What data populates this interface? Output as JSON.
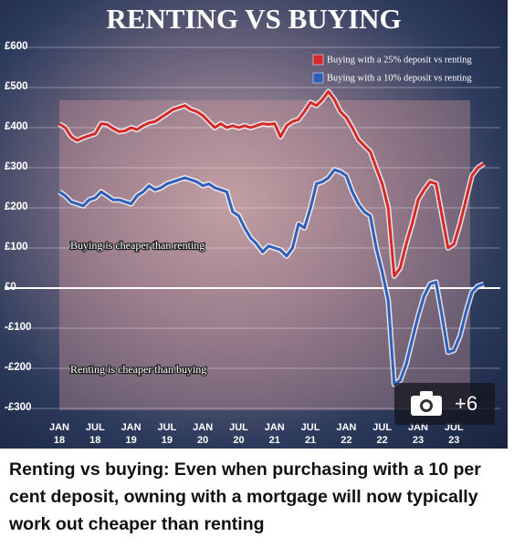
{
  "chart_data": {
    "type": "line",
    "title": "RENTING VS BUYING",
    "x": [
      "2018-01",
      "2018-02",
      "2018-03",
      "2018-04",
      "2018-05",
      "2018-06",
      "2018-07",
      "2018-08",
      "2018-09",
      "2018-10",
      "2018-11",
      "2018-12",
      "2019-01",
      "2019-02",
      "2019-03",
      "2019-04",
      "2019-05",
      "2019-06",
      "2019-07",
      "2019-08",
      "2019-09",
      "2019-10",
      "2019-11",
      "2019-12",
      "2020-01",
      "2020-02",
      "2020-03",
      "2020-04",
      "2020-05",
      "2020-06",
      "2020-07",
      "2020-08",
      "2020-09",
      "2020-10",
      "2020-11",
      "2020-12",
      "2021-01",
      "2021-02",
      "2021-03",
      "2021-04",
      "2021-05",
      "2021-06",
      "2021-07",
      "2021-08",
      "2021-09",
      "2021-10",
      "2021-11",
      "2021-12",
      "2022-01",
      "2022-02",
      "2022-03",
      "2022-04",
      "2022-05",
      "2022-06",
      "2022-07",
      "2022-08",
      "2022-09",
      "2022-10",
      "2022-11",
      "2022-12",
      "2023-01",
      "2023-02",
      "2023-03",
      "2023-04",
      "2023-05",
      "2023-06",
      "2023-07",
      "2023-08",
      "2023-09",
      "2023-10",
      "2023-11",
      "2023-12"
    ],
    "series": [
      {
        "name": "Buying with a 25% deposit vs renting",
        "color": "#d42a2a",
        "values": [
          409,
          400,
          377,
          368,
          375,
          380,
          385,
          410,
          408,
          398,
          390,
          392,
          400,
          395,
          405,
          412,
          415,
          425,
          435,
          445,
          450,
          455,
          445,
          440,
          430,
          415,
          400,
          410,
          400,
          405,
          400,
          405,
          400,
          405,
          410,
          408,
          410,
          377,
          405,
          415,
          420,
          440,
          463,
          455,
          470,
          490,
          470,
          440,
          425,
          400,
          370,
          355,
          340,
          300,
          260,
          200,
          30,
          50,
          110,
          160,
          220,
          245,
          265,
          260,
          180,
          100,
          110,
          160,
          220,
          280,
          300,
          310
        ]
      },
      {
        "name": "Buying with a 10% deposit vs renting",
        "color": "#2f5fb8",
        "values": [
          240,
          230,
          215,
          210,
          205,
          220,
          225,
          240,
          230,
          220,
          220,
          215,
          210,
          230,
          240,
          255,
          245,
          250,
          260,
          265,
          270,
          275,
          270,
          265,
          255,
          260,
          250,
          245,
          240,
          190,
          180,
          150,
          125,
          110,
          90,
          105,
          100,
          95,
          80,
          100,
          160,
          150,
          200,
          260,
          265,
          275,
          295,
          290,
          280,
          240,
          210,
          190,
          180,
          100,
          40,
          -30,
          -240,
          -230,
          -190,
          -130,
          -70,
          -20,
          10,
          15,
          -70,
          -160,
          -155,
          -120,
          -60,
          -10,
          5,
          10
        ]
      }
    ],
    "xlim": [
      "2018-01",
      "2023-12"
    ],
    "xticks": [
      {
        "value": "2018-01",
        "label": "JAN 18"
      },
      {
        "value": "2018-07",
        "label": "JUL 18"
      },
      {
        "value": "2019-01",
        "label": "JAN 19"
      },
      {
        "value": "2019-07",
        "label": "JUL 19"
      },
      {
        "value": "2020-01",
        "label": "JAN 20"
      },
      {
        "value": "2020-07",
        "label": "JUL 20"
      },
      {
        "value": "2021-01",
        "label": "JAN 21"
      },
      {
        "value": "2021-07",
        "label": "JUL 21"
      },
      {
        "value": "2022-01",
        "label": "JAN 22"
      },
      {
        "value": "2022-07",
        "label": "JUL 22"
      },
      {
        "value": "2023-01",
        "label": "JAN 23"
      },
      {
        "value": "2023-07",
        "label": "JUL 23"
      }
    ],
    "ylim": [
      -300,
      600
    ],
    "yticks": [
      {
        "value": 600,
        "label": "£600"
      },
      {
        "value": 500,
        "label": "£500"
      },
      {
        "value": 400,
        "label": "£400"
      },
      {
        "value": 300,
        "label": "£300"
      },
      {
        "value": 200,
        "label": "£200"
      },
      {
        "value": 100,
        "label": "£100"
      },
      {
        "value": 0,
        "label": "£0"
      },
      {
        "value": -100,
        "label": "-£100"
      },
      {
        "value": -200,
        "label": "-£200"
      },
      {
        "value": -300,
        "label": "-£300"
      }
    ],
    "grid": true,
    "legend": "top-right",
    "annotations": [
      "Buying is cheaper than renting",
      "Renting is cheaper than buying"
    ]
  },
  "photo_count": "+6",
  "caption": "Renting vs buying: Even when purchasing with a 10 per cent deposit, owning with a mortgage will now typically work out cheaper than renting"
}
